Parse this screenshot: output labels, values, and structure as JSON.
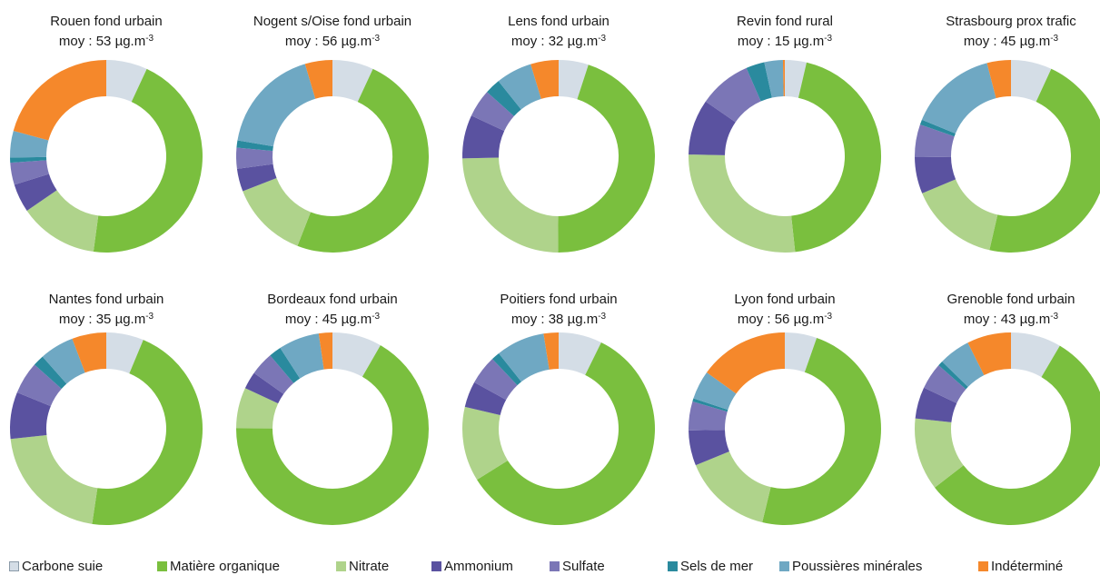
{
  "chart_data": {
    "type": "pie",
    "variant": "donut",
    "unit_suffix": "µg.m",
    "unit_exponent": "-3",
    "components": [
      {
        "name": "Carbone suie",
        "color": "#d4dde6"
      },
      {
        "name": "Matière organique",
        "color": "#7abf3e"
      },
      {
        "name": "Nitrate",
        "color": "#afd38b"
      },
      {
        "name": "Ammonium",
        "color": "#5a52a0"
      },
      {
        "name": "Sulfate",
        "color": "#7b76b6"
      },
      {
        "name": "Sels de mer",
        "color": "#2a8a9e"
      },
      {
        "name": "Poussières minérales",
        "color": "#6fa8c3"
      },
      {
        "name": "Indéterminé",
        "color": "#f5882b"
      }
    ],
    "charts": [
      {
        "title": "Rouen fond urbain",
        "mean_label": "moy :  53 µg.m",
        "values": [
          6.5,
          42.5,
          12.5,
          4.5,
          3.5,
          0.8,
          4.2,
          19.5
        ]
      },
      {
        "title": "Nogent s/Oise fond urbain",
        "mean_label": "moy :  56 µg.m",
        "values": [
          6.3,
          44.7,
          12.0,
          3.5,
          3.2,
          1.1,
          16.2,
          4.2
        ]
      },
      {
        "title": "Lens fond urbain",
        "mean_label": "moy : 32 µg.m",
        "values": [
          4.8,
          43.2,
          23.5,
          7.0,
          4.5,
          2.5,
          5.8,
          4.5
        ]
      },
      {
        "title": "Revin fond rural",
        "mean_label": "moy :  15 µg.m",
        "values": [
          3.5,
          43.0,
          26.0,
          9.0,
          8.5,
          3.0,
          3.0,
          0.3
        ]
      },
      {
        "title": "Strasbourg prox trafic",
        "mean_label": "moy : 45 µg.m",
        "values": [
          6.5,
          44.2,
          14.3,
          5.8,
          5.2,
          0.8,
          14.0,
          3.8
        ]
      },
      {
        "title": "Nantes fond urbain",
        "mean_label": "moy : 35 µg.m",
        "values": [
          6.0,
          44.0,
          20.0,
          7.5,
          5.2,
          1.8,
          5.5,
          5.5
        ]
      },
      {
        "title": "Bordeaux fond urbain",
        "mean_label": "moy : 45 µg.m",
        "values": [
          8.0,
          64.3,
          6.6,
          2.8,
          3.8,
          2.0,
          6.6,
          2.2
        ]
      },
      {
        "title": "Poitiers fond urbain",
        "mean_label": "moy :   38 µg.m",
        "values": [
          6.7,
          54.0,
          11.5,
          4.0,
          4.5,
          1.3,
          7.5,
          2.3
        ]
      },
      {
        "title": "Lyon fond urbain",
        "mean_label": "moy :  56 µg.m",
        "values": [
          5.0,
          45.0,
          14.0,
          5.5,
          4.5,
          0.5,
          4.5,
          14.0
        ]
      },
      {
        "title": "Grenoble fond urbain",
        "mean_label": "moy :   43 µg.m",
        "values": [
          8.0,
          53.0,
          11.5,
          5.0,
          4.2,
          0.8,
          5.0,
          7.0
        ]
      }
    ]
  }
}
